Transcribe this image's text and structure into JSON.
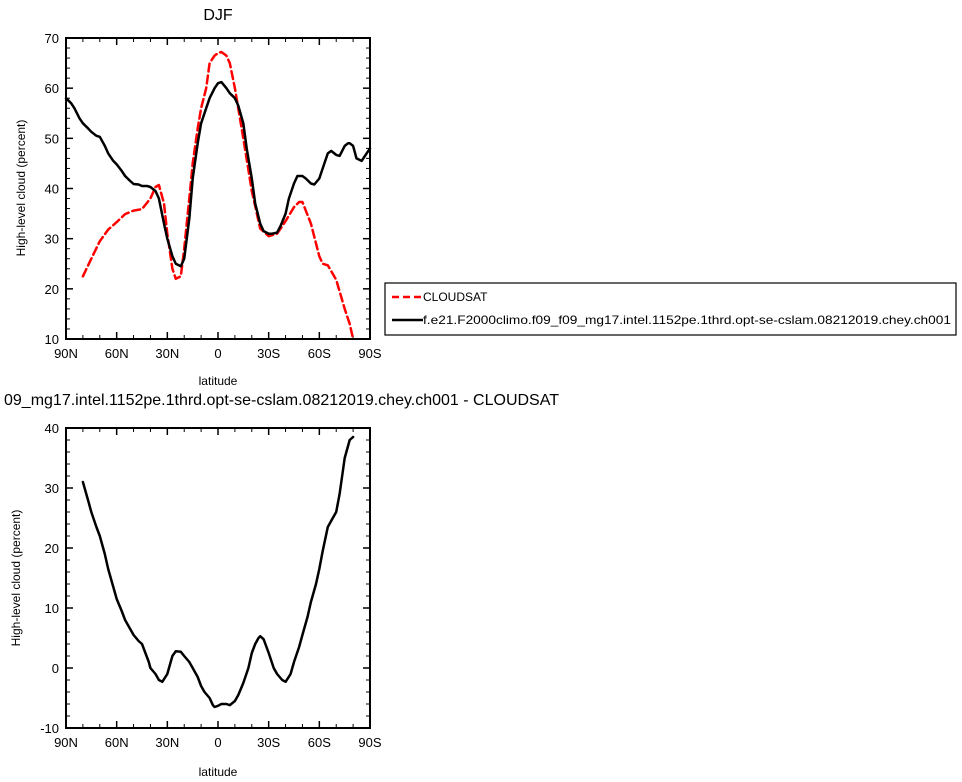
{
  "chart_data": [
    {
      "type": "line",
      "title": "DJF",
      "xlabel": "latitude",
      "ylabel": "High-level cloud (percent)",
      "xlim": [
        90,
        -90
      ],
      "ylim": [
        10,
        70
      ],
      "x_ticks": [
        90,
        60,
        30,
        0,
        -30,
        -60,
        -90
      ],
      "x_tick_labels": [
        "90N",
        "60N",
        "30N",
        "0",
        "30S",
        "60S",
        "90S"
      ],
      "y_ticks": [
        10,
        20,
        30,
        40,
        50,
        60,
        70
      ],
      "legend_position": "right",
      "series": [
        {
          "name": "CLOUDSAT",
          "color": "#ff0000",
          "dash": "dashed",
          "x": [
            80,
            75,
            70,
            65,
            60,
            55,
            50,
            45,
            40,
            37,
            35,
            32,
            30,
            27,
            25,
            22,
            20,
            17,
            15,
            12,
            10,
            7,
            5,
            2,
            0,
            -2,
            -5,
            -7,
            -10,
            -15,
            -20,
            -25,
            -30,
            -35,
            -40,
            -45,
            -48,
            -50,
            -55,
            -60,
            -62,
            -65,
            -70,
            -72,
            -75,
            -78,
            -80
          ],
          "y": [
            22.5,
            26,
            29.5,
            31.8,
            33.3,
            34.9,
            35.6,
            35.9,
            38,
            40.3,
            40.7,
            37,
            31,
            24,
            22,
            22.5,
            28,
            38,
            45,
            52,
            56,
            60,
            65,
            66.5,
            67,
            67.2,
            66.5,
            65,
            60,
            50,
            39.5,
            32,
            30.5,
            31,
            33.5,
            36.3,
            37.3,
            37.3,
            33,
            26.5,
            25,
            24.7,
            21.8,
            19.5,
            16,
            13,
            10
          ]
        },
        {
          "name": "f.e21.F2000climo.f09_f09_mg17.intel.1152pe.1thrd.opt-se-cslam.08212019.chey.ch001",
          "color": "#000000",
          "dash": "solid",
          "x": [
            90,
            87,
            85,
            82,
            80,
            77,
            75,
            72,
            70,
            67,
            65,
            62,
            60,
            57,
            55,
            52,
            50,
            47,
            45,
            42,
            40,
            37,
            35,
            32,
            30,
            27,
            25,
            22,
            20,
            17,
            15,
            12,
            10,
            7,
            5,
            2,
            0,
            -2,
            -5,
            -7,
            -10,
            -12,
            -15,
            -17,
            -20,
            -22,
            -25,
            -27,
            -30,
            -32,
            -35,
            -37,
            -40,
            -42,
            -45,
            -47,
            -50,
            -52,
            -55,
            -57,
            -60,
            -62,
            -65,
            -67,
            -70,
            -72,
            -75,
            -77,
            -78,
            -80,
            -82,
            -85,
            -88,
            -90
          ],
          "y": [
            58,
            57,
            56,
            54,
            53,
            52,
            51.3,
            50.5,
            50.3,
            48.5,
            47,
            45.5,
            44.8,
            43.5,
            42.5,
            41.5,
            40.9,
            40.8,
            40.5,
            40.5,
            40.3,
            39.5,
            38,
            33,
            30,
            26.5,
            25,
            24.5,
            26,
            34,
            42,
            49,
            53,
            56,
            58,
            60,
            61,
            61.2,
            60,
            59,
            58,
            56.5,
            53,
            48,
            42,
            37,
            33,
            31.5,
            31,
            31,
            31.2,
            32.5,
            35,
            38,
            41,
            42.5,
            42.5,
            42,
            41,
            40.8,
            42,
            44,
            47,
            47.5,
            46.7,
            46.5,
            48.5,
            49,
            49,
            48.5,
            46,
            45.5,
            47,
            48
          ]
        }
      ]
    },
    {
      "type": "line",
      "title": "09_mg17.intel.1152pe.1thrd.opt-se-cslam.08212019.chey.ch001 - CLOUDSAT",
      "xlabel": "latitude",
      "ylabel": "High-level cloud (percent)",
      "xlim": [
        90,
        -90
      ],
      "ylim": [
        -10,
        40
      ],
      "x_ticks": [
        90,
        60,
        30,
        0,
        -30,
        -60,
        -90
      ],
      "x_tick_labels": [
        "90N",
        "60N",
        "30N",
        "0",
        "30S",
        "60S",
        "90S"
      ],
      "y_ticks": [
        -10,
        0,
        10,
        20,
        30,
        40
      ],
      "series": [
        {
          "color": "#000000",
          "dash": "solid",
          "x": [
            80,
            77,
            75,
            72,
            70,
            67,
            65,
            62,
            60,
            57,
            55,
            52,
            50,
            47,
            45,
            43,
            41,
            40,
            37,
            35,
            33,
            30,
            28,
            27,
            25,
            22,
            20,
            17,
            15,
            12,
            10,
            8,
            5,
            3,
            2,
            0,
            -2,
            -5,
            -7,
            -10,
            -12,
            -15,
            -18,
            -20,
            -22,
            -24,
            -25,
            -27,
            -30,
            -33,
            -35,
            -38,
            -40,
            -43,
            -45,
            -48,
            -50,
            -53,
            -55,
            -58,
            -60,
            -62,
            -65,
            -68,
            -70,
            -72,
            -75,
            -78,
            -80
          ],
          "y": [
            31,
            28,
            26,
            23.5,
            22,
            19,
            16.5,
            13.5,
            11.5,
            9.5,
            8,
            6.5,
            5.5,
            4.5,
            4,
            2.5,
            1,
            0,
            -1,
            -2,
            -2.3,
            -1,
            1,
            2,
            2.8,
            2.7,
            2,
            1,
            0,
            -1.5,
            -3,
            -4,
            -5,
            -6.2,
            -6.5,
            -6.3,
            -6,
            -6,
            -6.2,
            -5.5,
            -4.5,
            -2.5,
            0,
            2.5,
            4,
            5,
            5.3,
            4.8,
            2.5,
            0,
            -1,
            -2,
            -2.3,
            -1,
            1,
            3.5,
            5.5,
            8.5,
            11,
            14,
            16.5,
            19.5,
            23.5,
            25,
            26,
            29,
            35,
            38,
            38.5
          ]
        }
      ]
    }
  ]
}
